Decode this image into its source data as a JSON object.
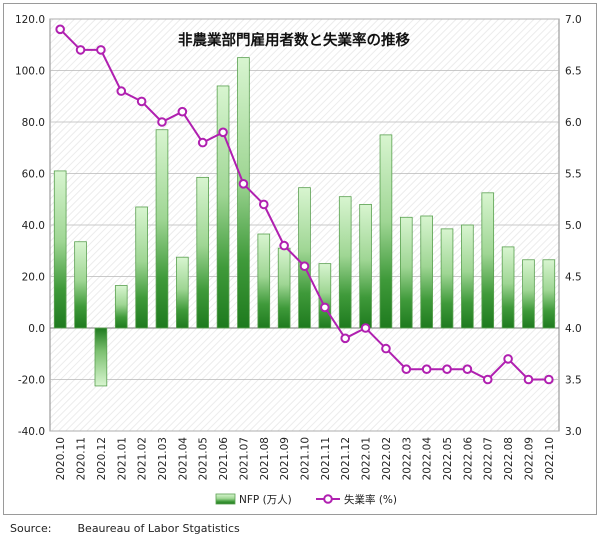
{
  "chart_data": {
    "type": "bar+line",
    "title": "非農業部門雇用者数と失業率の推移",
    "categories": [
      "2020.10",
      "2020.11",
      "2020.12",
      "2021.01",
      "2021.02",
      "2021.03",
      "2021.04",
      "2021.05",
      "2021.06",
      "2021.07",
      "2021.08",
      "2021.09",
      "2021.10",
      "2021.11",
      "2021.12",
      "2022.01",
      "2022.02",
      "2022.03",
      "2022.04",
      "2022.05",
      "2022.06",
      "2022.07",
      "2022.08",
      "2022.09",
      "2022.10"
    ],
    "series": [
      {
        "name": "NFP (万人)",
        "type": "bar",
        "axis": "left",
        "values": [
          61,
          33.5,
          -22.5,
          16.5,
          47,
          77,
          27.5,
          58.5,
          94,
          105,
          36.5,
          31,
          54.5,
          25,
          51,
          48,
          75,
          43,
          43.5,
          38.5,
          40,
          52.5,
          31.5,
          26.5,
          26.5
        ]
      },
      {
        "name": "失業率 (%)",
        "type": "line",
        "axis": "right",
        "values": [
          6.9,
          6.7,
          6.7,
          6.3,
          6.2,
          6.0,
          6.1,
          5.8,
          5.9,
          5.4,
          5.2,
          4.8,
          4.6,
          4.2,
          3.9,
          4.0,
          3.8,
          3.6,
          3.6,
          3.6,
          3.6,
          3.5,
          3.7,
          3.5,
          3.5
        ]
      }
    ],
    "y_left": {
      "min": -40,
      "max": 120,
      "ticks": [
        "-40.0",
        "-20.0",
        "0.0",
        "20.0",
        "40.0",
        "60.0",
        "80.0",
        "100.0",
        "120.0"
      ]
    },
    "y_right": {
      "min": 3.0,
      "max": 7.0,
      "ticks": [
        "3.0",
        "3.5",
        "4.0",
        "4.5",
        "5.0",
        "5.5",
        "6.0",
        "6.5",
        "7.0"
      ]
    },
    "grid": true,
    "legend_position": "bottom-center"
  },
  "colors": {
    "bar_dark": "#1e7a1e",
    "bar_light": "#c8eec0",
    "bar_edge": "#5aa050",
    "line": "#b020b0",
    "marker_fill": "#ffffff",
    "grid": "#b8b8b8",
    "plot_bg_hatch": "#ececec"
  },
  "source": {
    "label": "Source:",
    "text": "Beaureau of Labor Stgatistics"
  }
}
